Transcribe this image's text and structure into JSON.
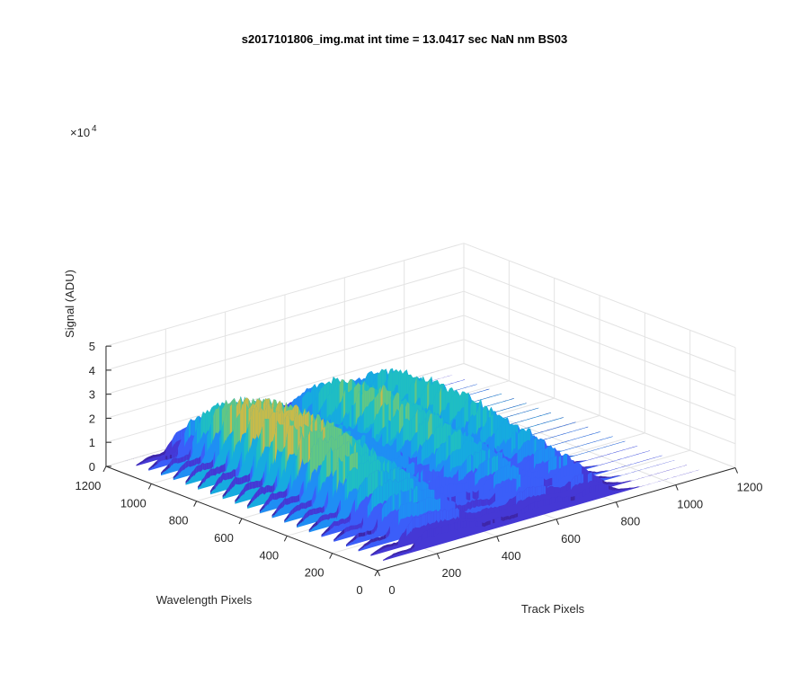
{
  "chart_data": {
    "type": "surface",
    "title": "s2017101806_img.mat int time = 13.0417 sec  NaN nm BS03",
    "xlabel": "Track Pixels",
    "ylabel": "Wavelength Pixels",
    "zlabel": "Signal (ADU)",
    "z_exponent_label": "×10",
    "z_exponent_power": "4",
    "xlim": [
      0,
      1200
    ],
    "ylim": [
      0,
      1200
    ],
    "zlim": [
      0,
      50000
    ],
    "x_ticks": [
      "0",
      "200",
      "400",
      "600",
      "800",
      "1000",
      "1200"
    ],
    "y_ticks": [
      "0",
      "200",
      "400",
      "600",
      "800",
      "1000",
      "1200"
    ],
    "z_ticks": [
      "0",
      "1",
      "2",
      "3",
      "4",
      "5"
    ],
    "grid": true,
    "colormap": "parula",
    "colors": [
      "#3e26a8",
      "#4538d5",
      "#3b5ef9",
      "#1f8ef4",
      "#16abdf",
      "#1fbec3",
      "#61c785",
      "#c7bb4a",
      "#f3bf38",
      "#f9de26"
    ],
    "peak_profile": {
      "track_pixels": [
        0,
        50,
        100,
        150,
        200,
        250,
        300,
        350,
        400,
        450,
        500,
        550,
        600,
        650,
        700,
        750,
        800,
        850,
        900,
        950,
        1000,
        1050,
        1100,
        1150,
        1200
      ],
      "peak_signal": [
        0,
        0,
        9500,
        9000,
        37000,
        38000,
        37000,
        32000,
        19000,
        21000,
        17000,
        29000,
        34000,
        27000,
        19000,
        30000,
        28000,
        9000,
        2500,
        400,
        0,
        0,
        0,
        0,
        0
      ]
    }
  }
}
